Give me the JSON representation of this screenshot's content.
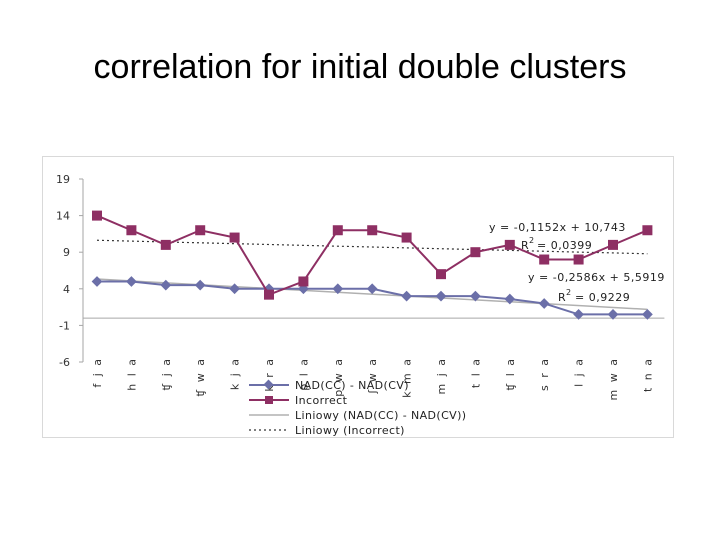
{
  "title": "correlation for initial double clusters",
  "chart_data": {
    "type": "line",
    "categories": [
      "f j a",
      "h l a",
      "ʧ j a",
      "ʧ w a",
      "k j a",
      "k r a",
      "p l a",
      "p w a",
      "ʃ w a",
      "k m a",
      "m j a",
      "t l a",
      "ʧ l a",
      "s r a",
      "l j a",
      "m w a",
      "t n a"
    ],
    "series": [
      {
        "name": "NAD(CC) - NAD(CV)",
        "color": "#6b6fa8",
        "marker": "diamond",
        "values": [
          5,
          5,
          4.5,
          4.5,
          4,
          4,
          4,
          4,
          4,
          3,
          3,
          3,
          2.6,
          2,
          0.5,
          0.5,
          0.5
        ]
      },
      {
        "name": "Incorrect",
        "color": "#8e2f63",
        "marker": "square",
        "values": [
          14,
          12,
          10,
          12,
          11,
          3.2,
          5,
          12,
          12,
          11,
          6,
          9,
          10,
          8,
          8,
          10,
          12
        ]
      }
    ],
    "trendlines": [
      {
        "name": "Liniowy (NAD(CC) - NAD(CV))",
        "slope": -0.2586,
        "intercept": 5.5919,
        "style": "solid",
        "color": "#b0b0b0"
      },
      {
        "name": "Liniowy (Incorrect)",
        "slope": -0.1152,
        "intercept": 10.743,
        "style": "dotted",
        "color": "#333333"
      }
    ],
    "annotations": [
      {
        "eq_text": "y = -0,1152x + 10,743",
        "r_label": "R",
        "r_sup": "2",
        "r_value": "= 0,0399"
      },
      {
        "eq_text": "y = -0,2586x + 5,5919",
        "r_label": "R",
        "r_sup": "2",
        "r_value": "= 0,9229"
      }
    ],
    "yticks": [
      19,
      14,
      9,
      4,
      -1,
      -6
    ],
    "ylim": [
      -6,
      19
    ],
    "grid": false,
    "legend_position": "bottom"
  }
}
